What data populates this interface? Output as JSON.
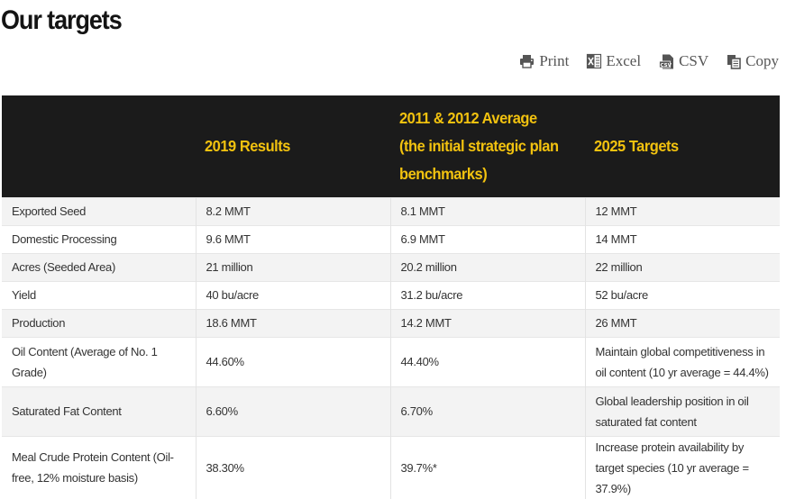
{
  "page": {
    "title": "Our targets"
  },
  "toolbar": {
    "buttons": [
      {
        "label": "Print",
        "icon": "printer-icon"
      },
      {
        "label": "Excel",
        "icon": "excel-icon"
      },
      {
        "label": "CSV",
        "icon": "csv-icon"
      },
      {
        "label": "Copy",
        "icon": "copy-icon"
      }
    ]
  },
  "table": {
    "headers": [
      "",
      "2019 Results",
      "2011 & 2012 Average (the initial strategic plan benchmarks)",
      "2025 Targets"
    ],
    "rows": [
      [
        "Exported Seed",
        "8.2 MMT",
        "8.1 MMT",
        "12 MMT"
      ],
      [
        "Domestic Processing",
        "9.6 MMT",
        "6.9 MMT",
        "14 MMT"
      ],
      [
        "Acres (Seeded Area)",
        "21 million",
        "20.2 million",
        "22 million"
      ],
      [
        "Yield",
        "40 bu/acre",
        "31.2 bu/acre",
        "52 bu/acre"
      ],
      [
        "Production",
        "18.6 MMT",
        "14.2 MMT",
        "26 MMT"
      ],
      [
        "Oil Content (Average of No. 1 Grade)",
        "44.60%",
        "44.40%",
        "Maintain global competitiveness in oil content (10 yr average = 44.4%)"
      ],
      [
        "Saturated Fat Content",
        "6.60%",
        "6.70%",
        "Global leadership position in oil saturated fat content"
      ],
      [
        "Meal Crude Protein Content (Oil-free, 12% moisture basis)",
        "38.30%",
        "39.7%*",
        "Increase protein availability by target species (10 yr average = 37.9%)"
      ]
    ]
  },
  "colors": {
    "header_bg": "#1b1b1b",
    "header_text": "#f2c20f",
    "row_stripe": "#f3f3f3"
  }
}
